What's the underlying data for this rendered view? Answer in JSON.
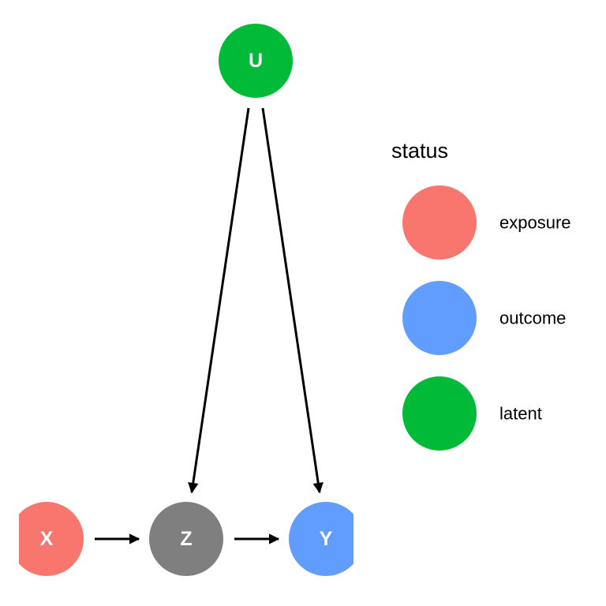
{
  "diagram": {
    "nodes": [
      {
        "id": "U",
        "label": "U",
        "status": "latent"
      },
      {
        "id": "X",
        "label": "X",
        "status": "exposure"
      },
      {
        "id": "Z",
        "label": "Z",
        "status": ""
      },
      {
        "id": "Y",
        "label": "Y",
        "status": "outcome"
      }
    ],
    "edges": [
      {
        "from": "U",
        "to": "Z"
      },
      {
        "from": "U",
        "to": "Y"
      },
      {
        "from": "X",
        "to": "Z"
      },
      {
        "from": "Z",
        "to": "Y"
      }
    ]
  },
  "legend": {
    "title": "status",
    "items": [
      {
        "label": "exposure",
        "color": "#F8766D"
      },
      {
        "label": "outcome",
        "color": "#619CFF"
      },
      {
        "label": "latent",
        "color": "#00BA38"
      }
    ]
  },
  "colors": {
    "exposure": "#F8766D",
    "outcome": "#619CFF",
    "latent": "#00BA38",
    "unassigned": "#7F7F7F"
  }
}
